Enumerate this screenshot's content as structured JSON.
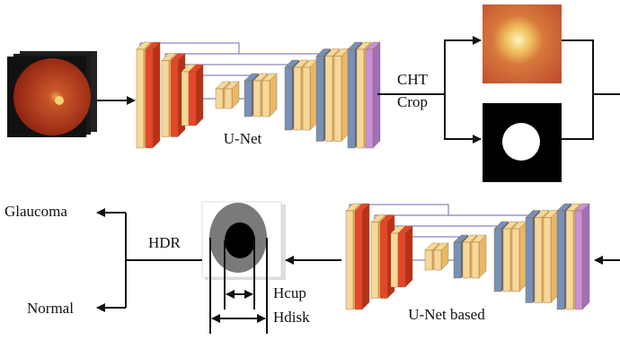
{
  "labels": {
    "unet": "U-Net",
    "cht": "CHT",
    "crop": "Crop",
    "glaucoma": "Glaucoma",
    "hdr": "HDR",
    "normal": "Normal",
    "hcup": "Hcup",
    "hdisk": "Hdisk",
    "unet_based": "U-Net based"
  }
}
